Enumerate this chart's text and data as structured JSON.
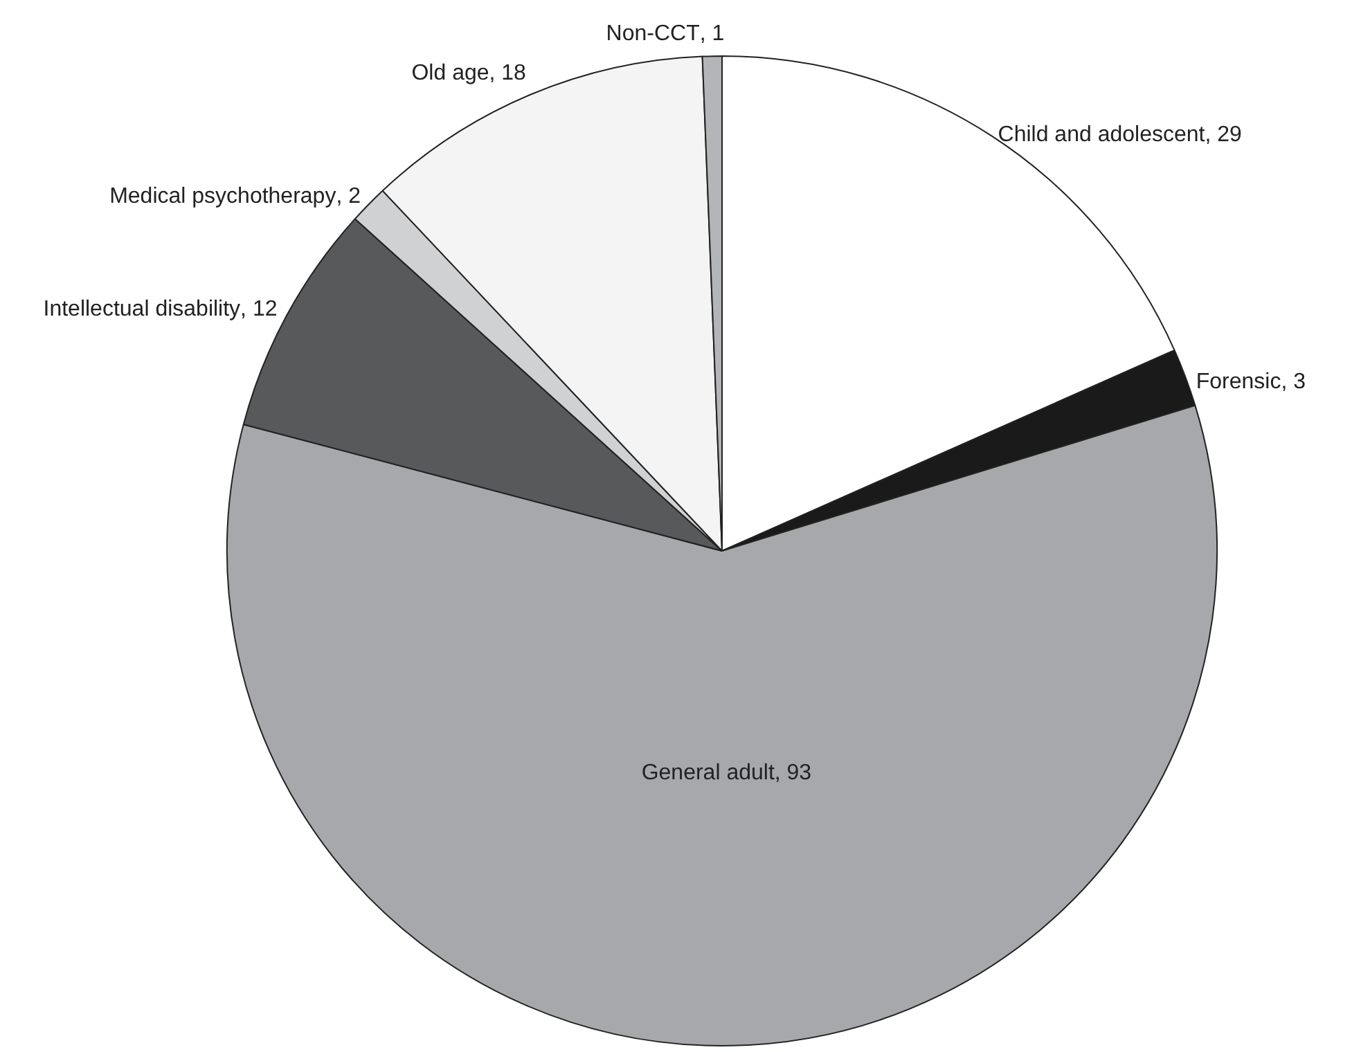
{
  "chart_data": {
    "type": "pie",
    "categories": [
      "Child and adolescent",
      "Forensic",
      "General adult",
      "Intellectual disability",
      "Medical psychotherapy",
      "Old age",
      "Non-CCT"
    ],
    "values": [
      29,
      3,
      93,
      12,
      2,
      18,
      1
    ],
    "colors": [
      "#ffffff",
      "#1a1a1a",
      "#a7a8ab",
      "#58595b",
      "#d0d1d3",
      "#f4f4f4",
      "#b4b5b8"
    ],
    "value_labels": [
      ", 29",
      ", 3",
      ", 93",
      ", 12",
      ", 2",
      ", 18",
      ", 1"
    ],
    "legend": false
  }
}
